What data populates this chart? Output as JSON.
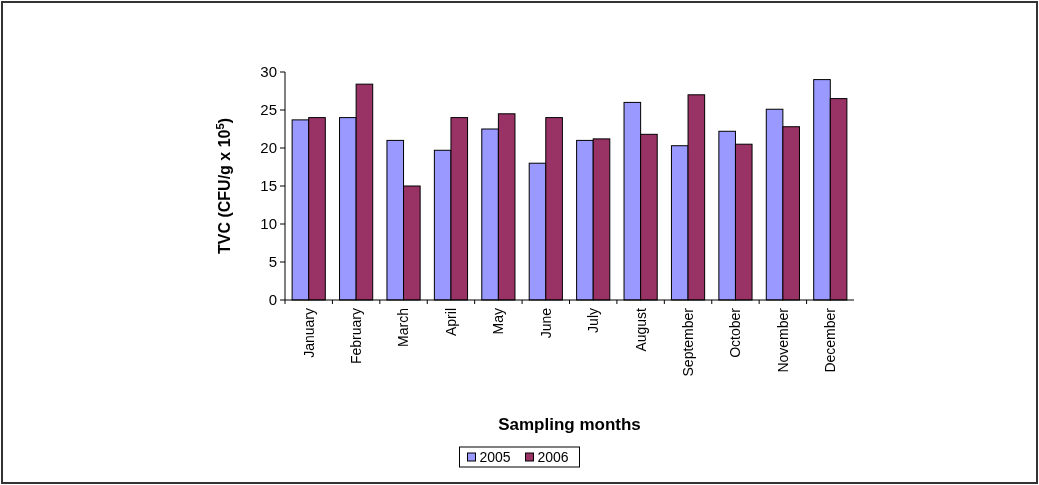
{
  "chart_data": {
    "type": "bar",
    "xlabel": "Sampling months",
    "ylabel": "TVC (CFU/g x 10$^{5}$)",
    "categories": [
      "January",
      "February",
      "March",
      "April",
      "May",
      "June",
      "July",
      "August",
      "September",
      "October",
      "November",
      "December"
    ],
    "series": [
      {
        "name": "2005",
        "color": "#9999ff",
        "values": [
          23.7,
          24,
          21,
          19.7,
          22.5,
          18,
          21,
          26,
          20.3,
          22.2,
          25.1,
          29
        ]
      },
      {
        "name": "2006",
        "color": "#993366",
        "values": [
          24,
          28.4,
          15,
          24,
          24.5,
          24,
          21.2,
          21.8,
          27,
          20.5,
          22.8,
          26.5
        ]
      }
    ],
    "ylim": [
      0,
      30
    ],
    "yticks": [
      0,
      5,
      10,
      15,
      20,
      25,
      30
    ],
    "legend": "bottom"
  }
}
